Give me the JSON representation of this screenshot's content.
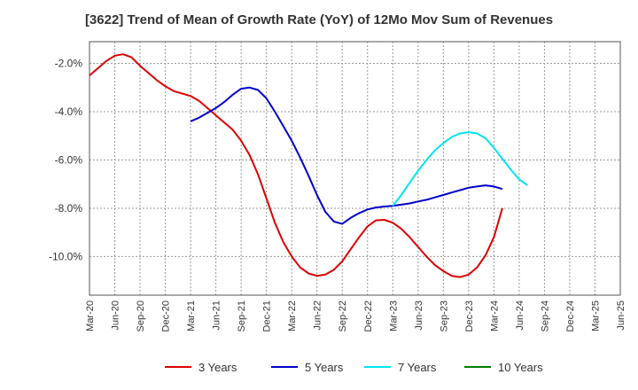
{
  "chart_data": {
    "type": "line",
    "title": "[3622]  Trend of Mean of Growth Rate (YoY) of 12Mo Mov Sum of Revenues",
    "xlabel": "",
    "ylabel": "",
    "ylim": [
      -11.6,
      -1.1
    ],
    "yticks": [
      -2.0,
      -4.0,
      -6.0,
      -8.0,
      -10.0
    ],
    "ytick_labels": [
      "-2.0%",
      "-4.0%",
      "-6.0%",
      "-8.0%",
      "-10.0%"
    ],
    "xtick_labels": [
      "Mar-20",
      "Jun-20",
      "Sep-20",
      "Dec-20",
      "Mar-21",
      "Jun-21",
      "Sep-21",
      "Dec-21",
      "Mar-22",
      "Jun-22",
      "Sep-22",
      "Dec-22",
      "Mar-23",
      "Jun-23",
      "Sep-23",
      "Dec-23",
      "Mar-24",
      "Jun-24",
      "Sep-24",
      "Dec-24",
      "Mar-25",
      "Jun-25"
    ],
    "grid": true,
    "legend_position": "bottom",
    "series": [
      {
        "name": "3 Years",
        "color": "#dd0000",
        "start_index": 0,
        "values": [
          -2.5,
          -2.2,
          -1.9,
          -1.68,
          -1.62,
          -1.75,
          -2.1,
          -2.4,
          -2.7,
          -2.95,
          -3.15,
          -3.25,
          -3.35,
          -3.55,
          -3.85,
          -4.15,
          -4.45,
          -4.75,
          -5.2,
          -5.8,
          -6.6,
          -7.6,
          -8.6,
          -9.4,
          -10.0,
          -10.45,
          -10.7,
          -10.8,
          -10.75,
          -10.55,
          -10.2,
          -9.7,
          -9.2,
          -8.75,
          -8.5,
          -8.48,
          -8.6,
          -8.85,
          -9.2,
          -9.6,
          -10.0,
          -10.35,
          -10.6,
          -10.8,
          -10.85,
          -10.75,
          -10.45,
          -9.95,
          -9.2,
          -8.0
        ]
      },
      {
        "name": "5 Years",
        "color": "#0000cc",
        "start_index": 12,
        "values": [
          -4.4,
          -4.25,
          -4.05,
          -3.85,
          -3.6,
          -3.3,
          -3.05,
          -3.0,
          -3.1,
          -3.45,
          -4.0,
          -4.6,
          -5.2,
          -5.9,
          -6.65,
          -7.45,
          -8.15,
          -8.55,
          -8.65,
          -8.4,
          -8.2,
          -8.05,
          -7.97,
          -7.93,
          -7.9,
          -7.85,
          -7.8,
          -7.72,
          -7.65,
          -7.55,
          -7.45,
          -7.35,
          -7.25,
          -7.15,
          -7.1,
          -7.05,
          -7.1,
          -7.2
        ]
      },
      {
        "name": "7 Years",
        "color": "#00e5ee",
        "start_index": 36,
        "values": [
          -7.9,
          -7.45,
          -6.95,
          -6.45,
          -6.0,
          -5.6,
          -5.3,
          -5.05,
          -4.9,
          -4.85,
          -4.9,
          -5.1,
          -5.5,
          -5.95,
          -6.4,
          -6.8,
          -7.05
        ]
      },
      {
        "name": "10 Years",
        "color": "#008000",
        "start_index": 0,
        "values": []
      }
    ]
  }
}
